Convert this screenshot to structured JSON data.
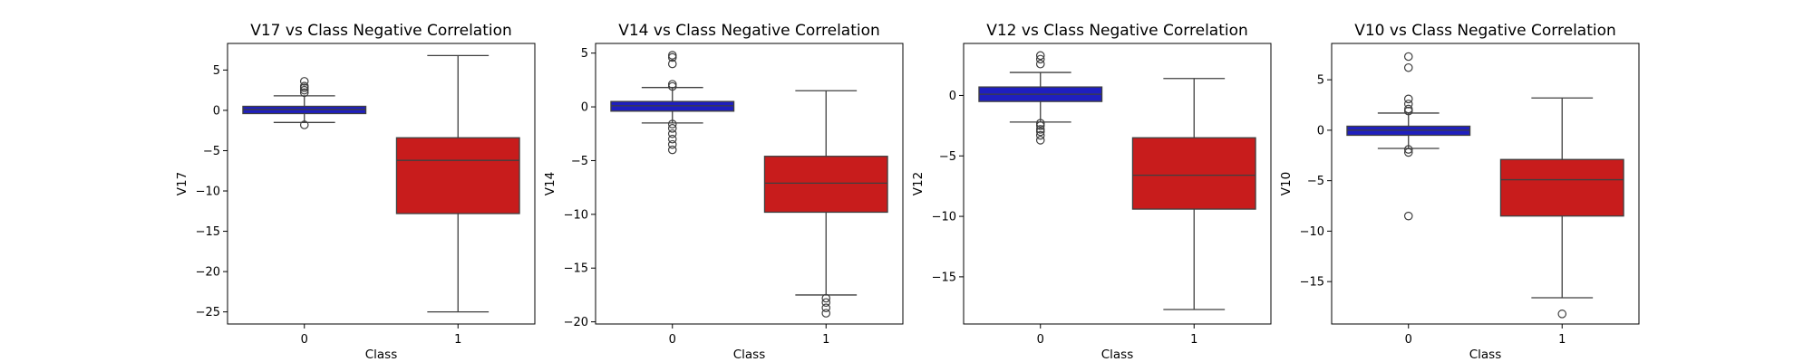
{
  "chart_data": [
    {
      "type": "box",
      "title": "V17 vs Class Negative Correlation",
      "xlabel": "Class",
      "ylabel": "V17",
      "categories": [
        "0",
        "1"
      ],
      "colors": [
        "#1f1fbf",
        "#c81c1c"
      ],
      "ylim": [
        -26.5,
        8.3
      ],
      "yticks": [
        5,
        0,
        -5,
        -10,
        -15,
        -20,
        -25
      ],
      "ytick_labels": [
        "5",
        "0",
        "−5",
        "−10",
        "−15",
        "−20",
        "−25"
      ],
      "boxes": [
        {
          "category": "0",
          "whisker_low": -1.5,
          "q1": -0.4,
          "median": 0.1,
          "q3": 0.5,
          "whisker_high": 1.8,
          "outliers": [
            3.6,
            3.0,
            2.8,
            2.5,
            2.2,
            -1.8
          ]
        },
        {
          "category": "1",
          "whisker_low": -25.0,
          "q1": -12.8,
          "median": -6.2,
          "q3": -3.4,
          "whisker_high": 6.8,
          "outliers": []
        }
      ]
    },
    {
      "type": "box",
      "title": "V14 vs Class Negative Correlation",
      "xlabel": "Class",
      "ylabel": "V14",
      "categories": [
        "0",
        "1"
      ],
      "colors": [
        "#1f1fbf",
        "#c81c1c"
      ],
      "ylim": [
        -20.2,
        5.9
      ],
      "yticks": [
        5,
        0,
        -5,
        -10,
        -15,
        -20
      ],
      "ytick_labels": [
        "5",
        "0",
        "−5",
        "−10",
        "−15",
        "−20"
      ],
      "boxes": [
        {
          "category": "0",
          "whisker_low": -1.5,
          "q1": -0.4,
          "median": 0.1,
          "q3": 0.5,
          "whisker_high": 1.8,
          "outliers": [
            4.8,
            4.6,
            4.0,
            2.1,
            1.9,
            -1.6,
            -2.0,
            -2.5,
            -3.0,
            -3.5,
            -4.0
          ]
        },
        {
          "category": "1",
          "whisker_low": -17.5,
          "q1": -9.8,
          "median": -7.1,
          "q3": -4.6,
          "whisker_high": 1.5,
          "outliers": [
            -17.8,
            -18.2,
            -18.7,
            -19.2
          ]
        }
      ]
    },
    {
      "type": "box",
      "title": "V12 vs Class Negative Correlation",
      "xlabel": "Class",
      "ylabel": "V12",
      "categories": [
        "0",
        "1"
      ],
      "colors": [
        "#1f1fbf",
        "#c81c1c"
      ],
      "ylim": [
        -18.9,
        4.3
      ],
      "yticks": [
        0,
        -5,
        -10,
        -15
      ],
      "ytick_labels": [
        "0",
        "−5",
        "−10",
        "−15"
      ],
      "boxes": [
        {
          "category": "0",
          "whisker_low": -2.2,
          "q1": -0.5,
          "median": 0.1,
          "q3": 0.7,
          "whisker_high": 1.9,
          "outliers": [
            3.3,
            3.0,
            2.6,
            -2.3,
            -2.5,
            -2.8,
            -3.0,
            -3.3,
            -3.7
          ]
        },
        {
          "category": "1",
          "whisker_low": -17.7,
          "q1": -9.4,
          "median": -6.6,
          "q3": -3.5,
          "whisker_high": 1.4,
          "outliers": []
        }
      ]
    },
    {
      "type": "box",
      "title": "V10 vs Class Negative Correlation",
      "xlabel": "Class",
      "ylabel": "V10",
      "categories": [
        "0",
        "1"
      ],
      "colors": [
        "#1f1fbf",
        "#c81c1c"
      ],
      "ylim": [
        -19.2,
        8.6
      ],
      "yticks": [
        5,
        0,
        -5,
        -10,
        -15
      ],
      "ytick_labels": [
        "5",
        "0",
        "−5",
        "−10",
        "−15"
      ],
      "boxes": [
        {
          "category": "0",
          "whisker_low": -1.8,
          "q1": -0.5,
          "median": 0.0,
          "q3": 0.4,
          "whisker_high": 1.7,
          "outliers": [
            7.3,
            6.2,
            3.1,
            2.6,
            2.1,
            1.9,
            -1.9,
            -2.2,
            -8.5
          ]
        },
        {
          "category": "1",
          "whisker_low": -16.6,
          "q1": -8.5,
          "median": -4.9,
          "q3": -2.9,
          "whisker_high": 3.2,
          "outliers": [
            -18.2
          ]
        }
      ]
    }
  ]
}
